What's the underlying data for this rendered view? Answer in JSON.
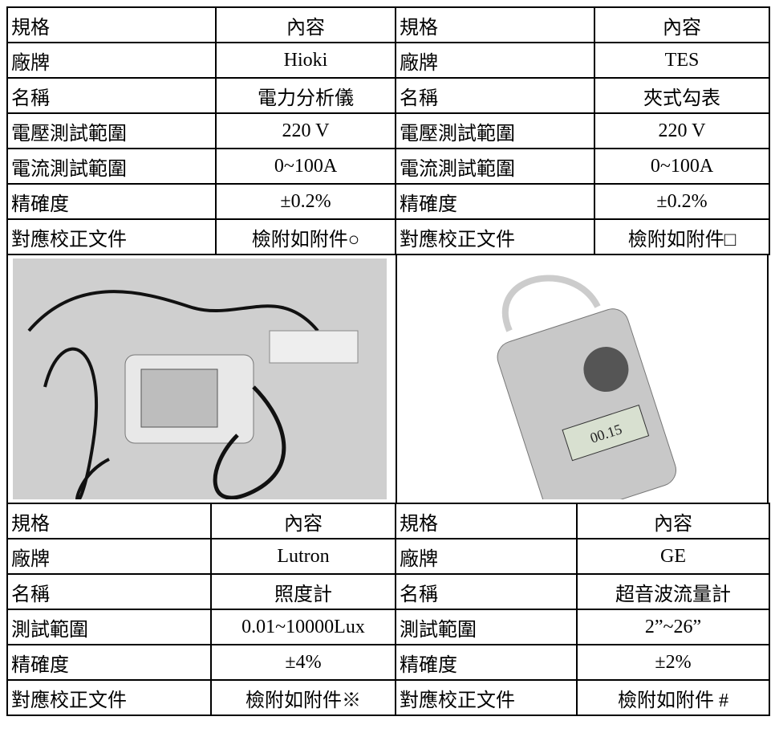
{
  "top": {
    "header": [
      "規格",
      "內容",
      "規格",
      "內容"
    ],
    "rows": [
      [
        "廠牌",
        "Hioki",
        "廠牌",
        "TES"
      ],
      [
        "名稱",
        "電力分析儀",
        "名稱",
        "夾式勾表"
      ],
      [
        "電壓測試範圍",
        "220 V",
        "電壓測試範圍",
        "220 V"
      ],
      [
        "電流測試範圍",
        "0~100A",
        "電流測試範圍",
        "0~100A"
      ],
      [
        "精確度",
        "±0.2%",
        "精確度",
        "±0.2%"
      ],
      [
        "對應校正文件",
        "檢附如附件○",
        "對應校正文件",
        "檢附如附件□"
      ]
    ]
  },
  "bottom": {
    "header": [
      "規格",
      "內容",
      "規格",
      "內容"
    ],
    "rows": [
      [
        "廠牌",
        "Lutron",
        "廠牌",
        "GE"
      ],
      [
        "名稱",
        "照度計",
        "名稱",
        "超音波流量計"
      ],
      [
        "測試範圍",
        "0.01~10000Lux",
        "測試範圍",
        "2”~26”"
      ],
      [
        "精確度",
        "±4%",
        "精確度",
        "±2%"
      ],
      [
        "對應校正文件",
        "檢附如附件※",
        "對應校正文件",
        "檢附如附件 #"
      ]
    ]
  }
}
